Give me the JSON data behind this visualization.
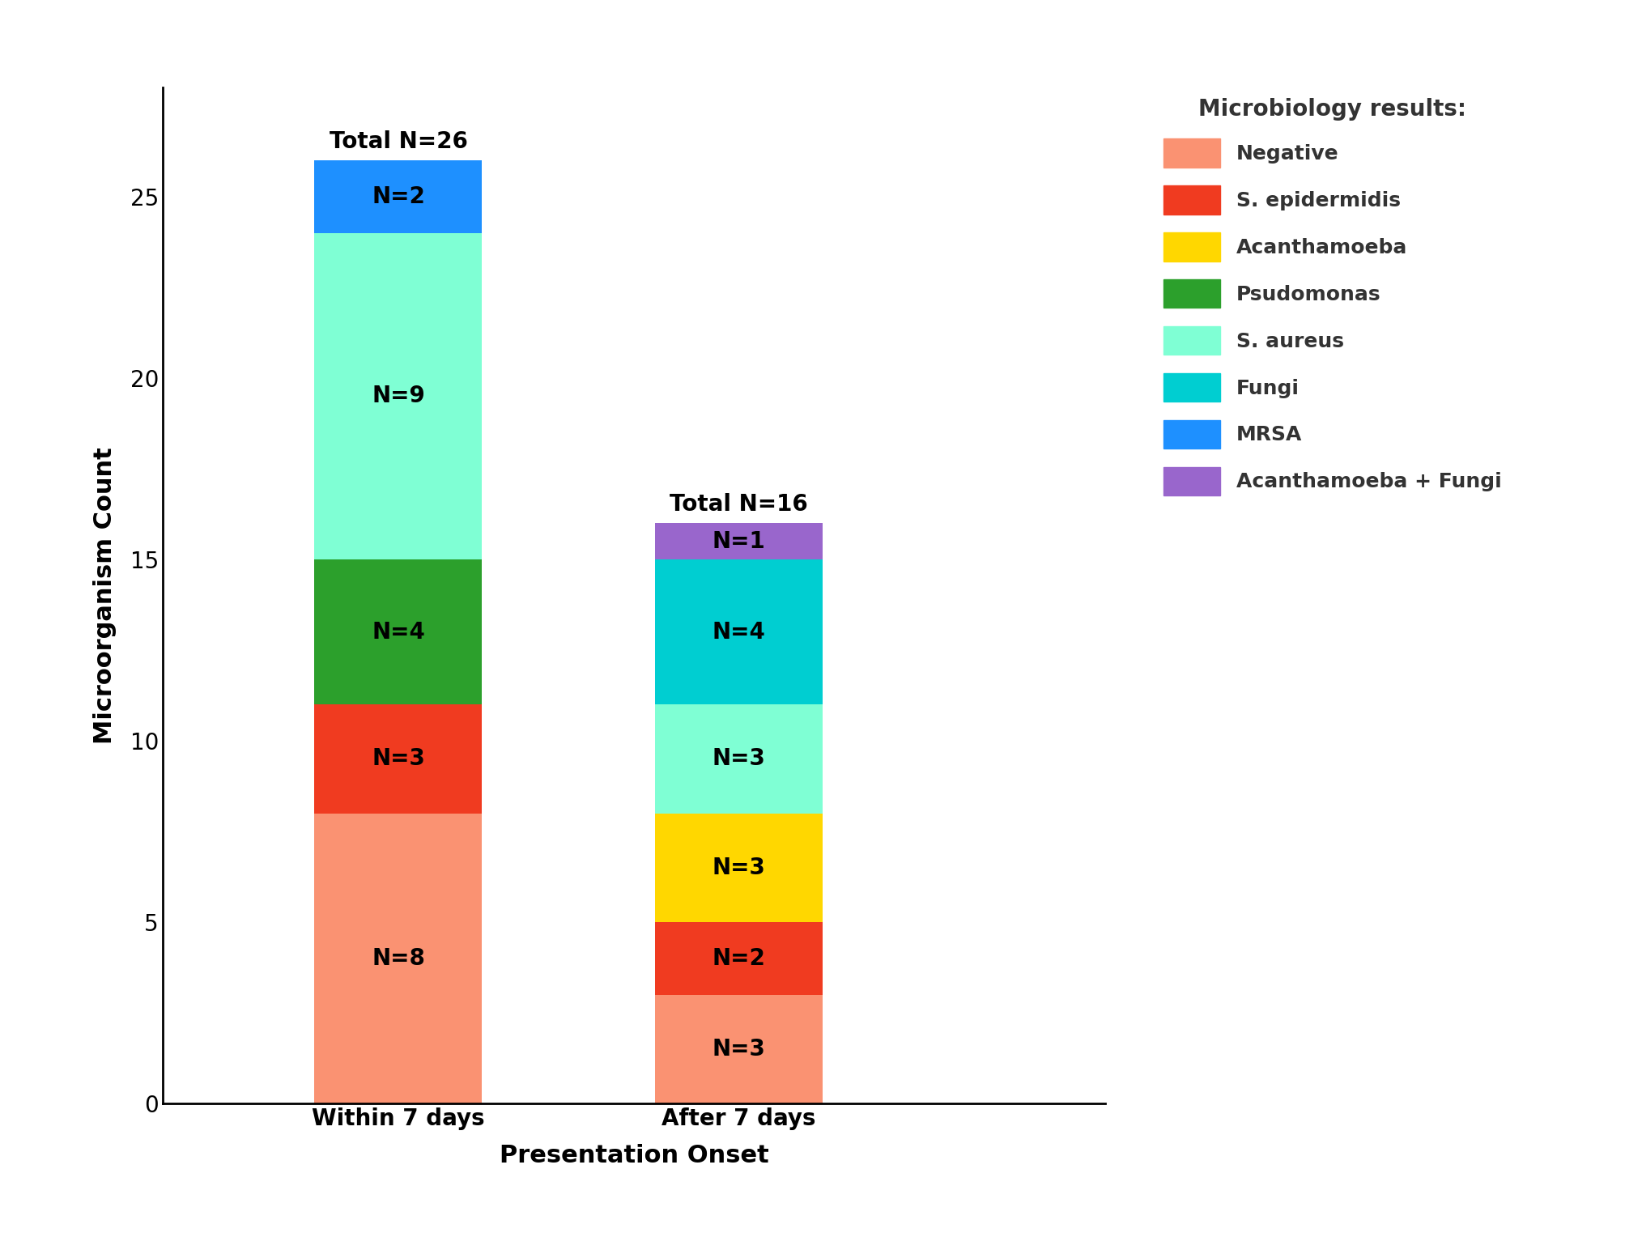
{
  "categories": [
    "Within 7 days",
    "After 7 days"
  ],
  "totals": [
    "Total N=26",
    "Total N=16"
  ],
  "segments": [
    {
      "label": "Negative",
      "color": "#FA9272",
      "values": [
        8,
        3
      ]
    },
    {
      "label": "S. epidermidis",
      "color": "#F03B20",
      "values": [
        3,
        2
      ]
    },
    {
      "label": "Acanthamoeba",
      "color": "#FFD700",
      "values": [
        0,
        3
      ]
    },
    {
      "label": "Psudomonas",
      "color": "#2CA02C",
      "values": [
        4,
        0
      ]
    },
    {
      "label": "S. aureus",
      "color": "#7FFFD4",
      "values": [
        9,
        3
      ]
    },
    {
      "label": "Fungi",
      "color": "#00CED1",
      "values": [
        0,
        4
      ]
    },
    {
      "label": "MRSA",
      "color": "#1E90FF",
      "values": [
        2,
        0
      ]
    },
    {
      "label": "Acanthamoeba + Fungi",
      "color": "#9966CC",
      "values": [
        0,
        1
      ]
    }
  ],
  "xlabel": "Presentation Onset",
  "ylabel": "Microorganism Count",
  "legend_title": "Microbiology results:",
  "ylim": [
    0,
    28
  ],
  "yticks": [
    0,
    5,
    10,
    15,
    20,
    25
  ],
  "x_positions": [
    0.35,
    1.0
  ],
  "bar_width": 0.32,
  "xlim": [
    -0.1,
    1.7
  ],
  "label_fontsize": 22,
  "tick_fontsize": 20,
  "legend_fontsize": 18,
  "legend_title_fontsize": 20,
  "annotation_fontsize": 20,
  "total_fontsize": 20,
  "background_color": "#FFFFFF"
}
